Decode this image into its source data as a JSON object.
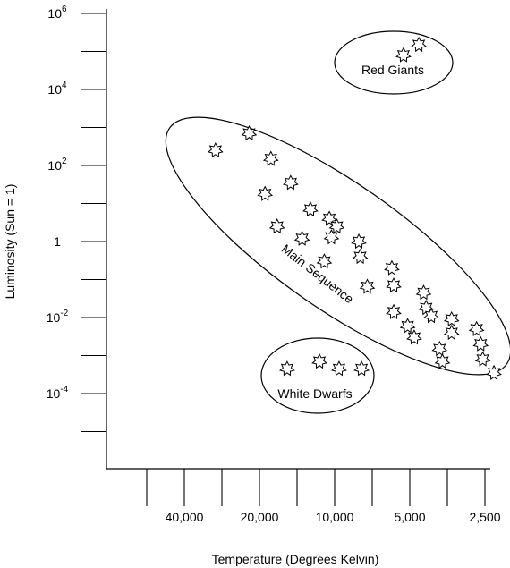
{
  "chart_data": {
    "type": "scatter",
    "title": "",
    "xlabel": "Temperature (Degrees Kelvin)",
    "ylabel": "Luminosity (Sun = 1)",
    "x_scale": "log-reversed",
    "y_scale": "log",
    "xlim": [
      70000,
      2200
    ],
    "ylim": [
      1e-08,
      1000000
    ],
    "x_ticks": [
      {
        "value": 40000,
        "label": "40,000"
      },
      {
        "value": 20000,
        "label": "20,000"
      },
      {
        "value": 10000,
        "label": "10,000"
      },
      {
        "value": 5000,
        "label": "5,000"
      },
      {
        "value": 2500,
        "label": "2,500"
      }
    ],
    "y_ticks": [
      {
        "value": 1000000,
        "base": "10",
        "exp": "6"
      },
      {
        "value": 10000,
        "base": "10",
        "exp": "4"
      },
      {
        "value": 100,
        "base": "10",
        "exp": "2"
      },
      {
        "value": 1,
        "base": "1",
        "exp": ""
      },
      {
        "value": 0.01,
        "base": "10",
        "exp": "-2"
      },
      {
        "value": 0.0001,
        "base": "10",
        "exp": "-4"
      }
    ],
    "groups": [
      {
        "label": "Red Giants",
        "points": [
          [
            5300,
            80000
          ],
          [
            4600,
            150000
          ]
        ]
      },
      {
        "label": "Main Sequence",
        "points": [
          [
            30000,
            250
          ],
          [
            22000,
            700
          ],
          [
            18000,
            150
          ],
          [
            15000,
            35
          ],
          [
            19000,
            18
          ],
          [
            12500,
            7
          ],
          [
            10500,
            4
          ],
          [
            9800,
            2.5
          ],
          [
            8000,
            1
          ],
          [
            17000,
            2.5
          ],
          [
            13500,
            1.2
          ],
          [
            10300,
            1.3
          ],
          [
            11000,
            0.3
          ],
          [
            7900,
            0.4
          ],
          [
            5900,
            0.2
          ],
          [
            5800,
            0.07
          ],
          [
            4400,
            0.045
          ],
          [
            4300,
            0.018
          ],
          [
            7400,
            0.065
          ],
          [
            5800,
            0.014
          ],
          [
            4100,
            0.011
          ],
          [
            3400,
            0.009
          ],
          [
            5100,
            0.006
          ],
          [
            4800,
            0.003
          ],
          [
            3400,
            0.004
          ],
          [
            2700,
            0.005
          ],
          [
            2600,
            0.002
          ],
          [
            3800,
            0.0015
          ],
          [
            3700,
            0.0007
          ],
          [
            2550,
            0.0008
          ],
          [
            2300,
            0.00035
          ]
        ]
      },
      {
        "label": "White Dwarfs",
        "points": [
          [
            15500,
            0.00045
          ],
          [
            11500,
            0.0007
          ],
          [
            9600,
            0.00045
          ],
          [
            7800,
            0.00045
          ]
        ]
      }
    ],
    "grid": false,
    "legend": "none"
  }
}
